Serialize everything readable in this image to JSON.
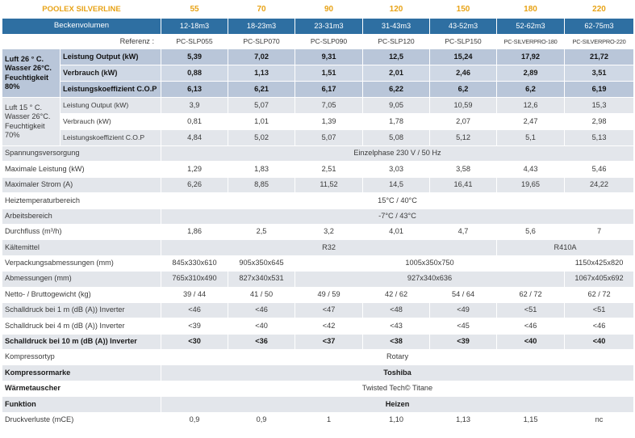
{
  "header": {
    "brand": "POOLEX SILVERLINE",
    "models": [
      "55",
      "70",
      "90",
      "120",
      "150",
      "180",
      "220"
    ],
    "volumes_label": "Beckenvolumen",
    "volumes": [
      "12-18m3",
      "18-23m3",
      "23-31m3",
      "31-43m3",
      "43-52m3",
      "52-62m3",
      "62-75m3"
    ],
    "referenz_label": "Referenz :",
    "referenz": [
      "PC-SLP055",
      "PC-SLP070",
      "PC-SLP090",
      "PC-SLP120",
      "PC-SLP150",
      "PC-SILVERPRO-180",
      "PC-SILVERPRO-220"
    ]
  },
  "cond1": {
    "label_lines": [
      "Luft 26 ° C.",
      "Wasser 26°C.",
      "Feuchtigkeit",
      "80%"
    ],
    "rows": [
      {
        "label": "Leistung Output (kW)",
        "values": [
          "5,39",
          "7,02",
          "9,31",
          "12,5",
          "15,24",
          "17,92",
          "21,72"
        ]
      },
      {
        "label": "Verbrauch (kW)",
        "values": [
          "0,88",
          "1,13",
          "1,51",
          "2,01",
          "2,46",
          "2,89",
          "3,51"
        ]
      },
      {
        "label": "Leistungskoeffizient C.O.P",
        "values": [
          "6,13",
          "6,21",
          "6,17",
          "6,22",
          "6,2",
          "6,2",
          "6,19"
        ]
      }
    ]
  },
  "cond2": {
    "label_lines": [
      "Luft 15 ° C.",
      "Wasser 26°C.",
      "Feuchtigkeit",
      "70%"
    ],
    "rows": [
      {
        "label": "Leistung Output (kW)",
        "values": [
          "3,9",
          "5,07",
          "7,05",
          "9,05",
          "10,59",
          "12,6",
          "15,3"
        ]
      },
      {
        "label": "Verbrauch (kW)",
        "values": [
          "0,81",
          "1,01",
          "1,39",
          "1,78",
          "2,07",
          "2,47",
          "2,98"
        ]
      },
      {
        "label": "Leistungskoeffizient C.O.P",
        "values": [
          "4,84",
          "5,02",
          "5,07",
          "5,08",
          "5,12",
          "5,1",
          "5,13"
        ]
      }
    ]
  },
  "spec": {
    "spannung": {
      "label": "Spannungsversorgung",
      "value": "Einzelphase 230 V / 50 Hz"
    },
    "max_leistung": {
      "label": "Maximale Leistung (kW)",
      "values": [
        "1,29",
        "1,83",
        "2,51",
        "3,03",
        "3,58",
        "4,43",
        "5,46"
      ]
    },
    "max_strom": {
      "label": "Maximaler Strom (A)",
      "values": [
        "6,26",
        "8,85",
        "11,52",
        "14,5",
        "16,41",
        "19,65",
        "24,22"
      ]
    },
    "heiz": {
      "label": "Heiztemperaturbereich",
      "value": "15°C / 40°C"
    },
    "arbeit": {
      "label": "Arbeitsbereich",
      "value": "-7°C / 43°C"
    },
    "durchfluss": {
      "label": "Durchfluss (m³/h)",
      "values": [
        "1,86",
        "2,5",
        "3,2",
        "4,01",
        "4,7",
        "5,6",
        "7"
      ]
    },
    "kaelte": {
      "label": "Kältemittel",
      "value_a": "R32",
      "value_b": "R410A"
    },
    "verpackung": {
      "label": "Verpackungsabmessungen (mm)",
      "v1": "845x330x610",
      "v2": "905x350x645",
      "v3": "1005x350x750",
      "v4": "1150x425x820"
    },
    "abmessungen": {
      "label": "Abmessungen (mm)",
      "v1": "765x310x490",
      "v2": "827x340x531",
      "v3": "927x340x636",
      "v4": "1067x405x692"
    },
    "gewicht": {
      "label": "Netto- / Bruttogewicht (kg)",
      "values": [
        "39 / 44",
        "41 / 50",
        "49 / 59",
        "42 / 62",
        "54 / 64",
        "62 / 72",
        "62 / 72"
      ]
    },
    "schall1": {
      "label": "Schalldruck bei 1 m (dB (A)) Inverter",
      "values": [
        "<46",
        "<46",
        "<47",
        "<48",
        "<49",
        "<51",
        "<51"
      ]
    },
    "schall4": {
      "label": "Schalldruck bei 4 m (dB (A)) Inverter",
      "values": [
        "<39",
        "<40",
        "<42",
        "<43",
        "<45",
        "<46",
        "<46"
      ]
    },
    "schall10": {
      "label": "Schalldruck bei 10 m (dB (A)) Inverter",
      "values": [
        "<30",
        "<36",
        "<37",
        "<38",
        "<39",
        "<40",
        "<40"
      ]
    },
    "kompressortyp": {
      "label": "Kompressortyp",
      "value": "Rotary"
    },
    "kompressormarke": {
      "label": "Kompressormarke",
      "value": "Toshiba"
    },
    "waerme": {
      "label": "Wärmetauscher",
      "value": "Twisted Tech© Titane"
    },
    "funktion": {
      "label": "Funktion",
      "value": "Heizen"
    },
    "druck": {
      "label": "Druckverluste (mCE)",
      "values": [
        "0,9",
        "0,9",
        "1",
        "1,10",
        "1,13",
        "1,15",
        "nc"
      ]
    }
  },
  "colors": {
    "band": "#2e6fa2",
    "accent": "#e8a317",
    "dark_row": "#b9c6d9",
    "grey_row": "#e3e6eb"
  }
}
